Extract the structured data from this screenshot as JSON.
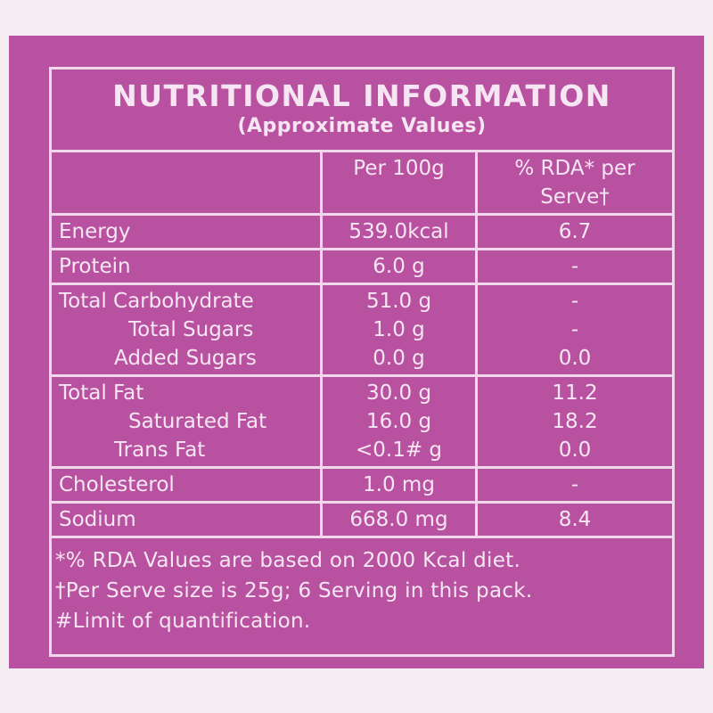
{
  "header": {
    "title": "NUTRITIONAL INFORMATION",
    "subtitle": "(Approximate Values)"
  },
  "table": {
    "columns": [
      "Per 100g",
      "% RDA* per Serve†"
    ],
    "groups": [
      [
        [
          "Energy",
          "539.0kcal",
          "6.7"
        ]
      ],
      [
        [
          "Protein",
          "6.0 g",
          "-"
        ]
      ],
      [
        [
          "Total Carbohydrate",
          "51.0 g",
          "-"
        ],
        [
          "Total Sugars",
          "1.0 g",
          "-"
        ],
        [
          "Added Sugars",
          "0.0 g",
          "0.0"
        ]
      ],
      [
        [
          "Total Fat",
          "30.0 g",
          "11.2"
        ],
        [
          "Saturated Fat",
          "16.0 g",
          "18.2"
        ],
        [
          "Trans Fat",
          "<0.1# g",
          "0.0"
        ]
      ],
      [
        [
          "Cholesterol",
          "1.0 mg",
          "-"
        ]
      ],
      [
        [
          "Sodium",
          "668.0 mg",
          "8.4"
        ]
      ]
    ]
  },
  "footnotes": [
    "*% RDA Values are based on 2000 Kcal diet.",
    "†Per Serve size is 25g; 6 Serving in this pack.",
    "#Limit of quantification."
  ]
}
